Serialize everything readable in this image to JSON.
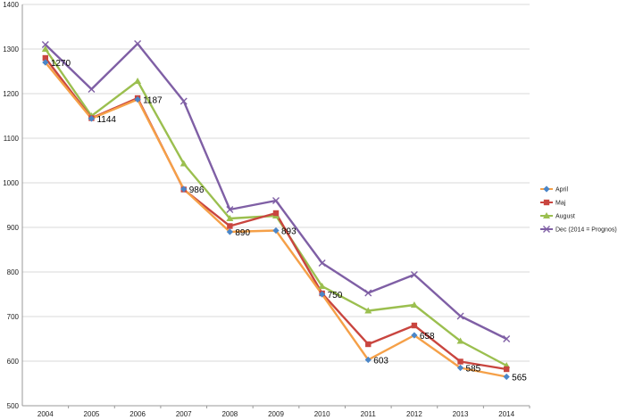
{
  "chart_data": {
    "type": "line",
    "title": "",
    "xlabel": "",
    "ylabel": "",
    "categories": [
      "2004",
      "2005",
      "2006",
      "2007",
      "2008",
      "2009",
      "2010",
      "2011",
      "2012",
      "2013",
      "2014"
    ],
    "ylim": [
      500,
      1400
    ],
    "yticks": [
      500,
      600,
      700,
      800,
      900,
      1000,
      1100,
      1200,
      1300,
      1400
    ],
    "grid": true,
    "legend_position": "right",
    "series": [
      {
        "name": "April",
        "color": "#f5a048",
        "marker": "diamond",
        "marker_color": "#4a86c8",
        "values": [
          1270,
          1144,
          1187,
          986,
          890,
          893,
          750,
          603,
          658,
          585,
          565
        ]
      },
      {
        "name": "Maj",
        "color": "#c9453f",
        "marker": "square",
        "marker_color": "#c9453f",
        "values": [
          1280,
          1145,
          1190,
          985,
          903,
          932,
          752,
          638,
          680,
          599,
          582
        ]
      },
      {
        "name": "August",
        "color": "#9bbf4f",
        "marker": "triangle",
        "marker_color": "#9bbf4f",
        "values": [
          1300,
          1150,
          1228,
          1043,
          920,
          926,
          768,
          713,
          726,
          645,
          590
        ]
      },
      {
        "name": "Dec (2014 = Prognos)",
        "color": "#7f5fa5",
        "marker": "x",
        "marker_color": "#7f5fa5",
        "values": [
          1310,
          1210,
          1312,
          1183,
          940,
          960,
          820,
          753,
          794,
          701,
          650
        ]
      }
    ],
    "data_labels": [
      {
        "series": "April",
        "index": 0,
        "text": "1270"
      },
      {
        "series": "April",
        "index": 1,
        "text": "1144"
      },
      {
        "series": "April",
        "index": 2,
        "text": "1187"
      },
      {
        "series": "April",
        "index": 3,
        "text": "986"
      },
      {
        "series": "April",
        "index": 4,
        "text": "890"
      },
      {
        "series": "April",
        "index": 5,
        "text": "893"
      },
      {
        "series": "April",
        "index": 6,
        "text": "750"
      },
      {
        "series": "April",
        "index": 7,
        "text": "603"
      },
      {
        "series": "April",
        "index": 8,
        "text": "658"
      },
      {
        "series": "April",
        "index": 9,
        "text": "585"
      },
      {
        "series": "April",
        "index": 10,
        "text": "565"
      }
    ]
  }
}
